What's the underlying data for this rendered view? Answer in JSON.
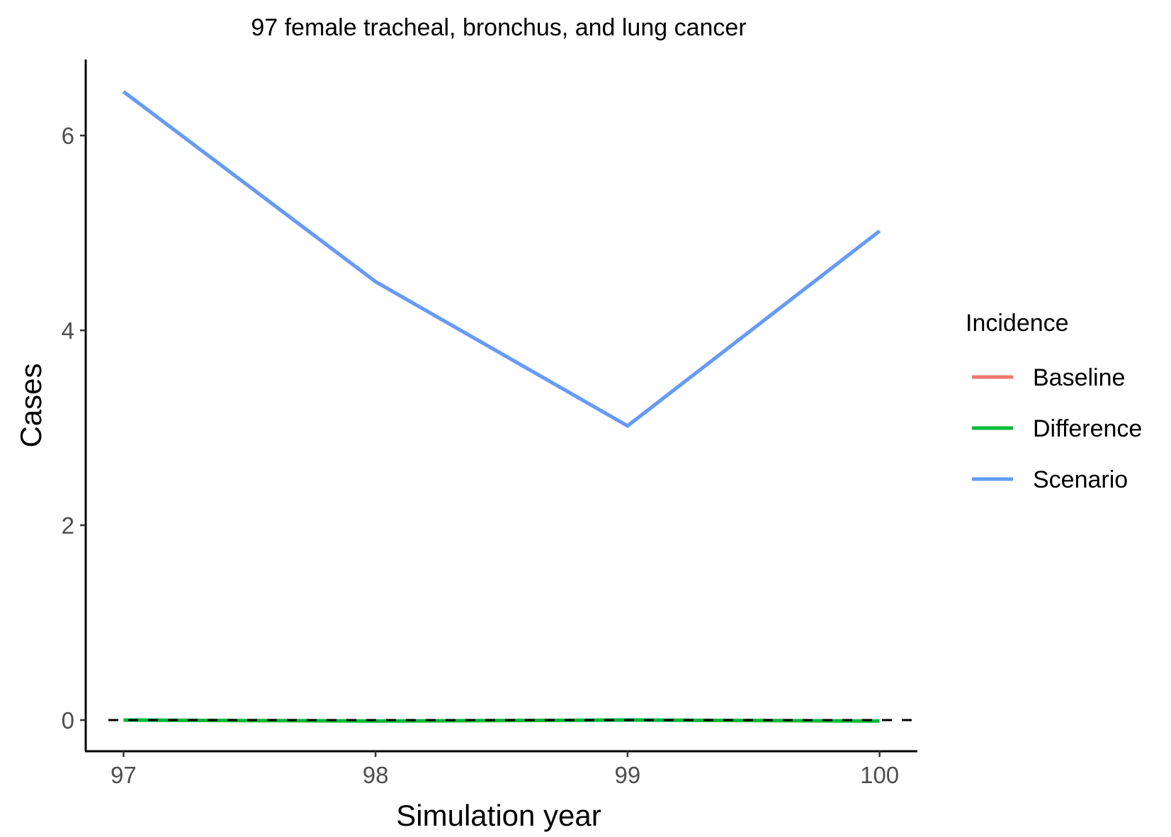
{
  "chart_data": {
    "type": "line",
    "title": "97 female tracheal, bronchus, and lung cancer",
    "xlabel": "Simulation year",
    "ylabel": "Cases",
    "x": [
      97,
      98,
      99,
      100
    ],
    "x_ticks": [
      "97",
      "98",
      "99",
      "100"
    ],
    "y_ticks": [
      "0",
      "2",
      "4",
      "6"
    ],
    "xlim": [
      96.85,
      100.15
    ],
    "ylim": [
      -0.32,
      6.78
    ],
    "grid": false,
    "reference_line": {
      "y": 0,
      "style": "dashed",
      "color": "#000000"
    },
    "legend": {
      "title": "Incidence",
      "position": "right"
    },
    "series": [
      {
        "name": "Baseline",
        "color": "#F8766D",
        "values": [
          6.45,
          4.5,
          3.02,
          5.02
        ]
      },
      {
        "name": "Difference",
        "color": "#00BA38",
        "values": [
          0.0,
          -0.01,
          0.0,
          -0.01
        ]
      },
      {
        "name": "Scenario",
        "color": "#619CFF",
        "values": [
          6.45,
          4.5,
          3.02,
          5.02
        ]
      }
    ]
  }
}
